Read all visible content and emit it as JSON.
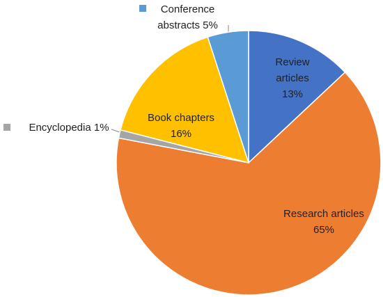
{
  "chart_data": {
    "type": "pie",
    "categories": [
      "Review articles",
      "Research articles",
      "Encyclopedia",
      "Book chapters",
      "Conference abstracts"
    ],
    "values": [
      13,
      65,
      1,
      16,
      5
    ],
    "value_labels": [
      "13%",
      "65%",
      "1%",
      "16%",
      "5%"
    ],
    "colors": [
      "#4472c4",
      "#ed7d31",
      "#a5a5a5",
      "#ffc000",
      "#5b9bd5"
    ]
  }
}
